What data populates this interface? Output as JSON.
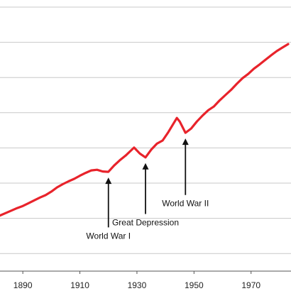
{
  "chart_data": {
    "type": "line",
    "title": "",
    "xlabel": "",
    "ylabel": "",
    "xlim": [
      1882,
      1984
    ],
    "ylim": [
      0,
      7.5
    ],
    "grid": "horizontal",
    "colors": {
      "line": "#e8232b",
      "grid": "#c8c8c8",
      "text": "#222222"
    },
    "x_ticks": [
      1890,
      1910,
      1930,
      1950,
      1970
    ],
    "x_tick_labels": [
      "1890",
      "1910",
      "1930",
      "1950",
      "1970"
    ],
    "y_gridlines": [
      0.5,
      1.5,
      2.5,
      3.5,
      4.5,
      5.5,
      6.5,
      7.5
    ],
    "series": [
      {
        "x": [
          1882,
          1884,
          1886,
          1888,
          1890,
          1892,
          1894,
          1896,
          1898,
          1900,
          1902,
          1904,
          1906,
          1908,
          1910,
          1912,
          1914,
          1916,
          1918,
          1920,
          1922,
          1924,
          1926,
          1929,
          1931,
          1933,
          1935,
          1937,
          1939,
          1941,
          1944,
          1945,
          1947,
          1949,
          1951,
          1953,
          1955,
          1957,
          1959,
          1961,
          1963,
          1965,
          1967,
          1969,
          1971,
          1973,
          1975,
          1977,
          1979,
          1981,
          1983
        ],
        "values": [
          1.58,
          1.65,
          1.72,
          1.79,
          1.85,
          1.93,
          2.01,
          2.09,
          2.16,
          2.26,
          2.38,
          2.47,
          2.55,
          2.62,
          2.71,
          2.79,
          2.86,
          2.88,
          2.83,
          2.82,
          3.0,
          3.15,
          3.28,
          3.51,
          3.34,
          3.23,
          3.45,
          3.62,
          3.71,
          3.95,
          4.35,
          4.25,
          3.93,
          4.05,
          4.25,
          4.42,
          4.57,
          4.68,
          4.85,
          5.0,
          5.15,
          5.32,
          5.48,
          5.6,
          5.75,
          5.87,
          6.0,
          6.13,
          6.25,
          6.35,
          6.45
        ]
      }
    ],
    "annotations": [
      {
        "label": "World War I",
        "x": 1920,
        "y": 2.82,
        "label_y": 0.92
      },
      {
        "label": "Great Depression",
        "x": 1933,
        "y": 3.23,
        "label_y": 1.3
      },
      {
        "label": "World War II",
        "x": 1947,
        "y": 3.93,
        "label_y": 1.84
      }
    ]
  }
}
